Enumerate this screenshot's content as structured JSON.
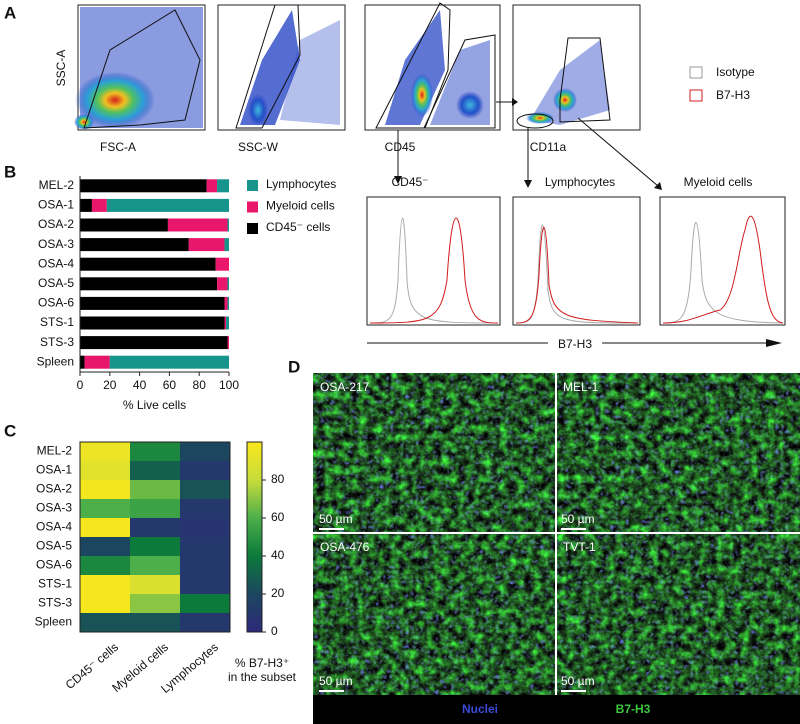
{
  "figure": {
    "panel_labels": [
      "A",
      "B",
      "C",
      "D"
    ],
    "panel_a": {
      "plot_x_labels": [
        "FSC-A",
        "SSC-W",
        "CD45",
        "CD11a"
      ],
      "plot_y_label": "SSC-A",
      "legend": [
        "Isotype",
        "B7-H3"
      ],
      "histogram_titles": [
        "CD45⁻",
        "Lymphocytes",
        "Myeloid cells"
      ],
      "histogram_x_label": "B7-H3"
    },
    "panel_d": {
      "images": [
        "OSA-217",
        "MEL-1",
        "OSA-476",
        "TVT-1"
      ],
      "scale_bar": "50 µm",
      "channels": [
        "Nuclei",
        "B7-H3"
      ]
    }
  },
  "chart_data": [
    {
      "type": "stacked_hbar",
      "categories": [
        "MEL-2",
        "OSA-1",
        "OSA-2",
        "OSA-3",
        "OSA-4",
        "OSA-5",
        "OSA-6",
        "STS-1",
        "STS-3",
        "Spleen"
      ],
      "series": [
        {
          "name": "CD45⁻ cells",
          "color": "#000000",
          "values": [
            85,
            8,
            59,
            73,
            91,
            92,
            97,
            97,
            99,
            3
          ]
        },
        {
          "name": "Myeloid cells",
          "color": "#e8176b",
          "values": [
            7,
            10,
            40,
            24,
            9,
            7,
            2,
            1,
            1,
            17
          ]
        },
        {
          "name": "Lymphocytes",
          "color": "#17948c",
          "values": [
            8,
            82,
            1,
            3,
            0,
            1,
            1,
            2,
            0,
            80
          ]
        }
      ],
      "legend_order": [
        2,
        1,
        0
      ],
      "x_label": "% Live cells",
      "xlim": [
        0,
        100
      ],
      "xticks": [
        0,
        20,
        40,
        60,
        80,
        100
      ]
    },
    {
      "type": "heatmap",
      "rows": [
        "MEL-2",
        "OSA-1",
        "OSA-2",
        "OSA-3",
        "OSA-4",
        "OSA-5",
        "OSA-6",
        "STS-1",
        "STS-3",
        "Spleen"
      ],
      "columns": [
        "CD45⁻ cells",
        "Myeloid cells",
        "Lymphocytes"
      ],
      "values": [
        [
          95,
          45,
          20
        ],
        [
          90,
          30,
          10
        ],
        [
          98,
          65,
          25
        ],
        [
          60,
          55,
          10
        ],
        [
          99,
          10,
          8
        ],
        [
          20,
          40,
          10
        ],
        [
          45,
          60,
          10
        ],
        [
          99,
          88,
          10
        ],
        [
          99,
          70,
          40
        ],
        [
          25,
          25,
          10
        ]
      ],
      "colorbar_label": [
        "% B7-H3⁺",
        "in the subset"
      ],
      "clim": [
        0,
        100
      ],
      "cticks": [
        0,
        20,
        40,
        60,
        80
      ],
      "colors": [
        "#2d2a7a",
        "#1c4660",
        "#0b7a3b",
        "#4caf4a",
        "#c8dc3a",
        "#f8e71c"
      ]
    }
  ]
}
